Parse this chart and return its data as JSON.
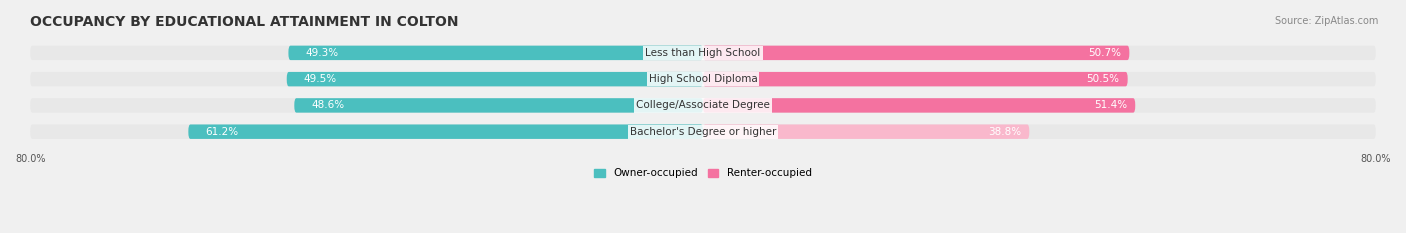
{
  "title": "OCCUPANCY BY EDUCATIONAL ATTAINMENT IN COLTON",
  "source": "Source: ZipAtlas.com",
  "categories": [
    "Less than High School",
    "High School Diploma",
    "College/Associate Degree",
    "Bachelor's Degree or higher"
  ],
  "owner_values": [
    49.3,
    49.5,
    48.6,
    61.2
  ],
  "renter_values": [
    50.7,
    50.5,
    51.4,
    38.8
  ],
  "owner_color": "#4bbfbf",
  "renter_color_top3": "#f472a0",
  "renter_color_bottom": "#f9b8cc",
  "owner_label": "Owner-occupied",
  "renter_label": "Renter-occupied",
  "x_left_label": "80.0%",
  "x_right_label": "80.0%",
  "xlim_left": -80,
  "xlim_right": 80,
  "bar_height": 0.55,
  "background_color": "#f0f0f0",
  "bar_bg_color": "#e8e8e8",
  "title_fontsize": 10,
  "label_fontsize": 7.5,
  "tick_fontsize": 7,
  "source_fontsize": 7
}
